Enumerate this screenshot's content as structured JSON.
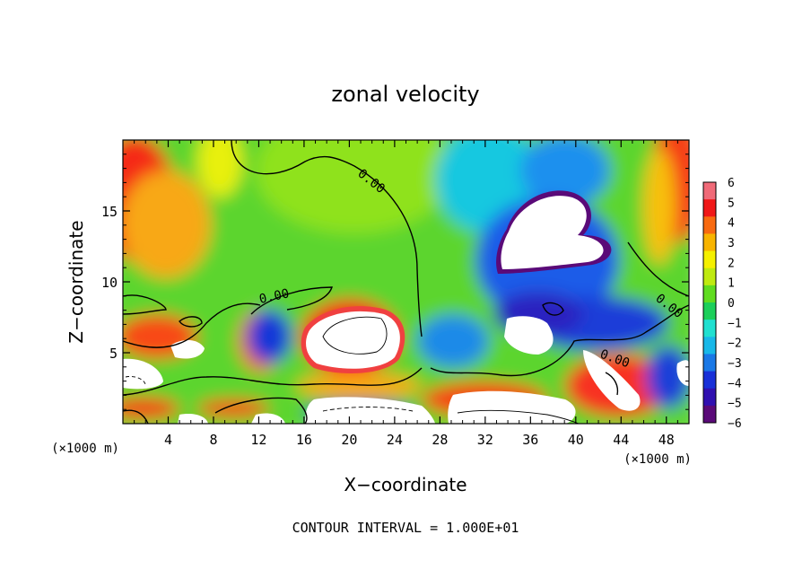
{
  "chart_data": {
    "type": "heatmap",
    "title": "zonal velocity",
    "xlabel": "X−coordinate",
    "ylabel": "Z−coordinate",
    "x_unit_left": "(×1000 m)",
    "x_unit_right": "(×1000 m)",
    "xlim": [
      0,
      50
    ],
    "ylim": [
      0,
      20
    ],
    "xticks": [
      4,
      8,
      12,
      16,
      20,
      24,
      28,
      32,
      36,
      40,
      44,
      48
    ],
    "yticks": [
      5,
      10,
      15
    ],
    "colorbar": {
      "min": -6,
      "max": 6,
      "ticks": [
        6,
        5,
        4,
        3,
        2,
        1,
        0,
        -1,
        -2,
        -3,
        -4,
        -5,
        -6
      ],
      "colors": [
        "#5a0a78",
        "#3010b0",
        "#1830d8",
        "#1a78e6",
        "#18b8e8",
        "#20e0d0",
        "#1ccf5a",
        "#60dc20",
        "#bfea10",
        "#f5f000",
        "#f8b400",
        "#f86a10",
        "#f01818",
        "#f06a78"
      ]
    },
    "contour_labels": [
      {
        "text": "0.00",
        "x": 21.5,
        "y": 17.2
      },
      {
        "text": "0.00",
        "x": 11.8,
        "y": 8.8
      },
      {
        "text": "0.00",
        "x": 45.5,
        "y": 8.2
      },
      {
        "text": "0.00",
        "x": 42.5,
        "y": 4.5
      }
    ],
    "footnote": "CONTOUR INTERVAL = 1.000E+01"
  }
}
